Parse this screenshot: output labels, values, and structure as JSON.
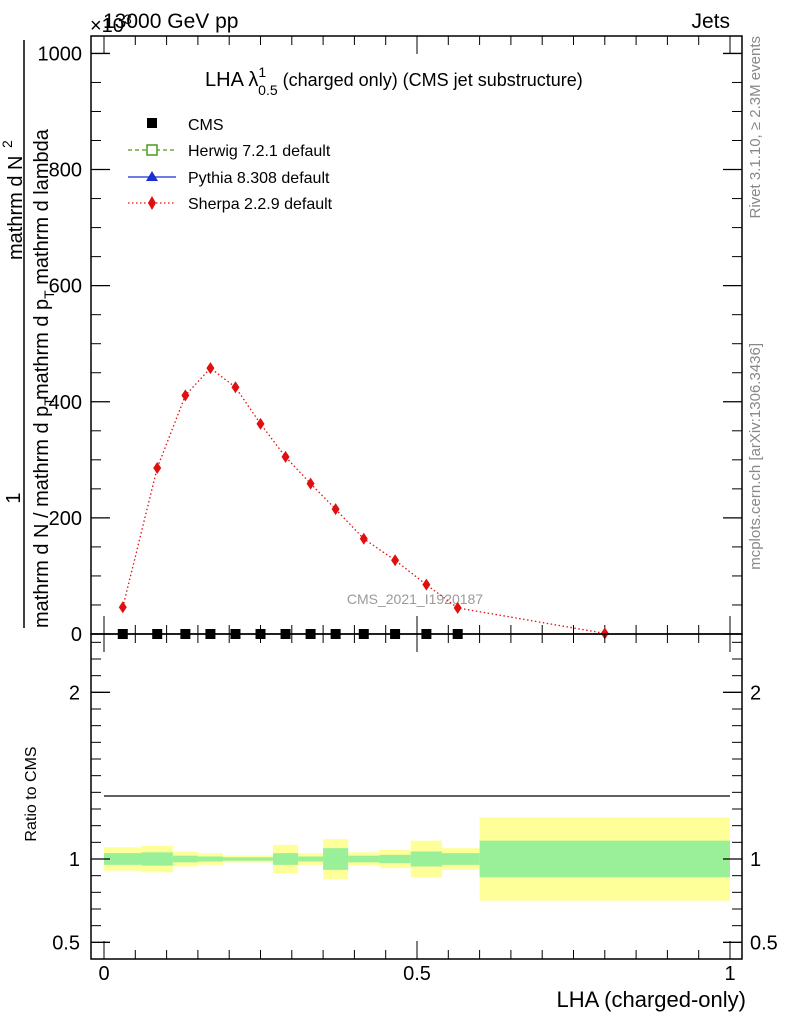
{
  "header": {
    "left_title": "13000 GeV pp",
    "right_title": "Jets",
    "exponent_label": "×10",
    "exponent_power": "3"
  },
  "side_labels": {
    "rivet": "Rivet 3.1.10, ≥ 2.3M events",
    "mcplots": "mcplots.cern.ch [arXiv:1306.3436]"
  },
  "chart_data": [
    {
      "type": "line",
      "title_main": "LHA λ",
      "title_sup": "1",
      "title_sub": "0.5",
      "title_suffix": " (charged only) (CMS jet substructure)",
      "watermark": "CMS_2021_I1920187",
      "ylabel_numerator": "1",
      "ylabel_denominator": "mathrm d N / mathrm d p",
      "ylabel_denominator_sub": "T",
      "ylabel_right_part1": "mathrm d N",
      "ylabel_right_part2": "mathrm d p",
      "ylabel_right_part2_sub": "T",
      "ylabel_right_part3": " mathrm d lambda",
      "ylabel_extra": "2",
      "ylim": [
        0,
        1030
      ],
      "yticks": [
        "0",
        "200",
        "400",
        "600",
        "800",
        "1000"
      ],
      "xlim": [
        0,
        1
      ],
      "legend_position": "top-left",
      "legend": [
        {
          "name": "CMS",
          "color": "#000000"
        },
        {
          "name": "Herwig 7.2.1 default",
          "color": "#4a9a1a"
        },
        {
          "name": "Pythia 8.308 default",
          "color": "#1a2fd0"
        },
        {
          "name": "Sherpa 2.2.9 default",
          "color": "#e01010"
        }
      ],
      "series": [
        {
          "name": "Sherpa 2.2.9 default",
          "x": [
            0.03,
            0.085,
            0.13,
            0.17,
            0.21,
            0.25,
            0.29,
            0.33,
            0.37,
            0.415,
            0.465,
            0.515,
            0.565,
            0.8
          ],
          "values": [
            46,
            286,
            411,
            458,
            425,
            362,
            305,
            259,
            215,
            164,
            127,
            85,
            45,
            1
          ]
        }
      ],
      "cms_points_x": [
        0.03,
        0.085,
        0.13,
        0.17,
        0.21,
        0.25,
        0.29,
        0.33,
        0.37,
        0.415,
        0.465,
        0.515,
        0.565
      ],
      "cms_points_y": [
        0,
        0,
        0,
        0,
        0,
        0,
        0,
        0,
        0,
        0,
        0,
        0,
        0
      ]
    },
    {
      "type": "area",
      "ylabel": "Ratio to CMS",
      "xlabel": "LHA (charged-only)",
      "ylim": [
        0.4,
        2.35
      ],
      "yticks": [
        "0.5",
        "1",
        "2"
      ],
      "xticks": [
        "0",
        "0.5",
        "1"
      ],
      "reference": 1,
      "bins": [
        {
          "lo": 0.0,
          "hi": 0.06,
          "inner": 0.035,
          "outer": 0.07
        },
        {
          "lo": 0.06,
          "hi": 0.11,
          "inner": 0.04,
          "outer": 0.08
        },
        {
          "lo": 0.11,
          "hi": 0.15,
          "inner": 0.02,
          "outer": 0.045
        },
        {
          "lo": 0.15,
          "hi": 0.19,
          "inner": 0.015,
          "outer": 0.035
        },
        {
          "lo": 0.19,
          "hi": 0.23,
          "inner": 0.01,
          "outer": 0.02
        },
        {
          "lo": 0.23,
          "hi": 0.27,
          "inner": 0.01,
          "outer": 0.02
        },
        {
          "lo": 0.27,
          "hi": 0.31,
          "inner": 0.035,
          "outer": 0.085
        },
        {
          "lo": 0.31,
          "hi": 0.35,
          "inner": 0.015,
          "outer": 0.035
        },
        {
          "lo": 0.35,
          "hi": 0.39,
          "inner": 0.065,
          "outer": 0.12
        },
        {
          "lo": 0.39,
          "hi": 0.44,
          "inner": 0.02,
          "outer": 0.04
        },
        {
          "lo": 0.44,
          "hi": 0.49,
          "inner": 0.025,
          "outer": 0.055
        },
        {
          "lo": 0.49,
          "hi": 0.54,
          "inner": 0.045,
          "outer": 0.11
        },
        {
          "lo": 0.54,
          "hi": 0.6,
          "inner": 0.035,
          "outer": 0.065
        },
        {
          "lo": 0.6,
          "hi": 1.0,
          "inner": 0.11,
          "outer": 0.25
        }
      ]
    }
  ]
}
